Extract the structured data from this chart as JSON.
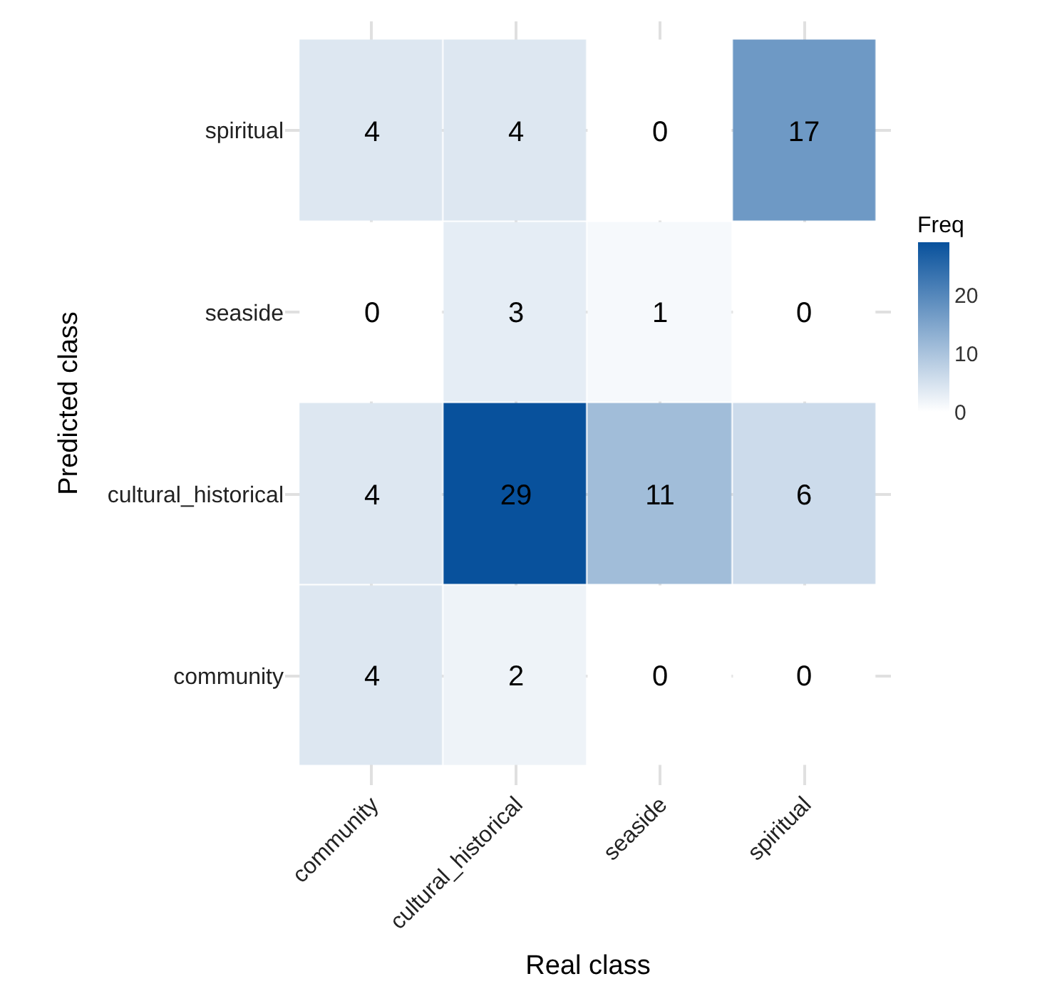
{
  "chart_data": {
    "type": "heatmap",
    "xlabel": "Real class",
    "ylabel": "Predicted class",
    "clabel": "Freq",
    "categories": [
      "community",
      "cultural_historical",
      "seaside",
      "spiritual"
    ],
    "y_categories": [
      "spiritual",
      "seaside",
      "cultural_historical",
      "community"
    ],
    "cells": [
      [
        4,
        4,
        0,
        17
      ],
      [
        0,
        3,
        1,
        0
      ],
      [
        4,
        29,
        11,
        6
      ],
      [
        4,
        2,
        0,
        0
      ]
    ],
    "clim": [
      0,
      29
    ],
    "cticks": [
      0,
      10,
      20
    ],
    "colors": [
      "#ffffff",
      "#08519c"
    ],
    "data_labels": true,
    "grid": true
  }
}
